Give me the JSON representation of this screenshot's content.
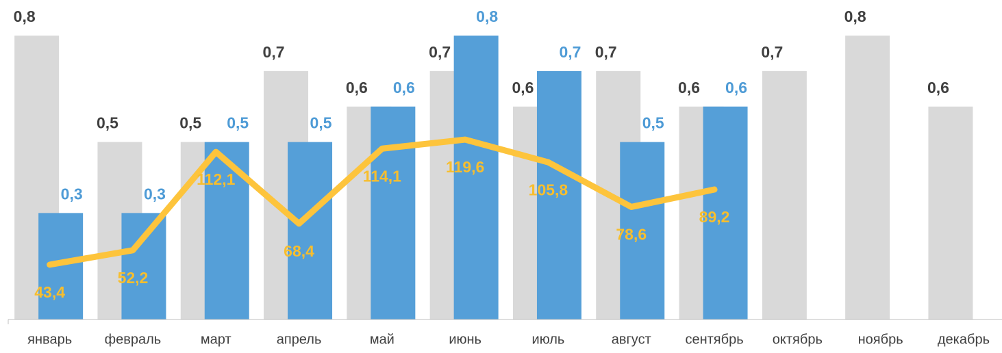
{
  "chart_data": {
    "type": "bar",
    "categories": [
      "январь",
      "февраль",
      "март",
      "апрель",
      "май",
      "июнь",
      "июль",
      "август",
      "сентябрь",
      "октябрь",
      "ноябрь",
      "декабрь"
    ],
    "ylim": [
      0,
      0.8
    ],
    "y2lim": [
      10,
      183
    ],
    "series": [
      {
        "name": null,
        "type": "bar",
        "color": "#d9d9d9",
        "label_color": "#404040",
        "values": [
          0.8,
          0.5,
          0.5,
          0.7,
          0.6,
          0.7,
          0.6,
          0.7,
          0.6,
          0.7,
          0.8,
          0.6
        ],
        "value_labels": [
          "0,8",
          "0,5",
          "0,5",
          "0,7",
          "0,6",
          "0,7",
          "0,6",
          "0,7",
          "0,6",
          "0,7",
          "0,8",
          "0,6"
        ]
      },
      {
        "name": null,
        "type": "bar",
        "color": "#559fd8",
        "label_color": "#4e9bd6",
        "values": [
          0.3,
          0.3,
          0.5,
          0.5,
          0.6,
          0.8,
          0.7,
          0.5,
          0.6,
          null,
          null,
          null
        ],
        "value_labels": [
          "0,3",
          "0,3",
          "0,5",
          "0,5",
          "0,6",
          "0,8",
          "0,7",
          "0,5",
          "0,6",
          null,
          null,
          null
        ]
      },
      {
        "name": null,
        "type": "line",
        "axis": "y2",
        "color": "#fdc43c",
        "label_color": "#f7be2e",
        "values": [
          43.4,
          52.2,
          112.1,
          68.4,
          114.1,
          119.6,
          105.8,
          78.6,
          89.2,
          null,
          null,
          null
        ],
        "value_labels": [
          "43,4",
          "52,2",
          "112,1",
          "68,4",
          "114,1",
          "119,6",
          "105,8",
          "78,6",
          "89,2",
          null,
          null,
          null
        ]
      }
    ]
  }
}
